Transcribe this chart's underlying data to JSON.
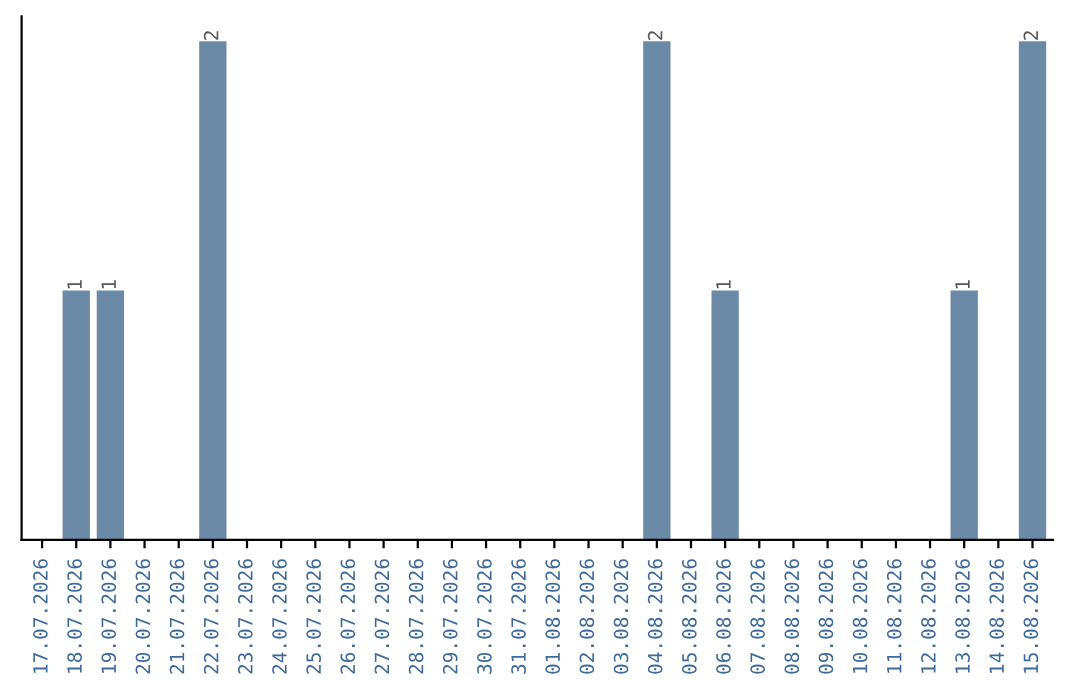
{
  "chart_data": {
    "type": "bar",
    "categories": [
      "17.07.2026",
      "18.07.2026",
      "19.07.2026",
      "20.07.2026",
      "21.07.2026",
      "22.07.2026",
      "23.07.2026",
      "24.07.2026",
      "25.07.2026",
      "26.07.2026",
      "27.07.2026",
      "28.07.2026",
      "29.07.2026",
      "30.07.2026",
      "31.07.2026",
      "01.08.2026",
      "02.08.2026",
      "03.08.2026",
      "04.08.2026",
      "05.08.2026",
      "06.08.2026",
      "07.08.2026",
      "08.08.2026",
      "09.08.2026",
      "10.08.2026",
      "11.08.2026",
      "12.08.2026",
      "13.08.2026",
      "14.08.2026",
      "15.08.2026"
    ],
    "values": [
      0,
      1,
      1,
      0,
      0,
      2,
      0,
      0,
      0,
      0,
      0,
      0,
      0,
      0,
      0,
      0,
      0,
      0,
      2,
      0,
      1,
      0,
      0,
      0,
      0,
      0,
      0,
      1,
      0,
      2
    ],
    "value_labels": [
      null,
      "1",
      "1",
      null,
      null,
      "2",
      null,
      null,
      null,
      null,
      null,
      null,
      null,
      null,
      null,
      null,
      null,
      null,
      "2",
      null,
      "1",
      null,
      null,
      null,
      null,
      null,
      null,
      "1",
      null,
      "2"
    ],
    "color": "#6b8aa8",
    "ylim": [
      0,
      2.1
    ],
    "tick_labels": "x",
    "grid": false,
    "legend": false
  }
}
